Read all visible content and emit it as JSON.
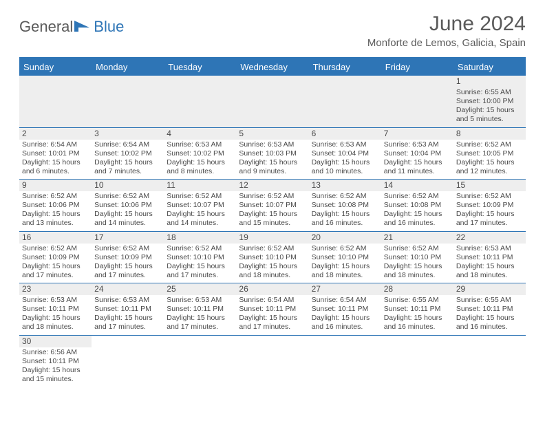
{
  "logo": {
    "text1": "General",
    "text2": "Blue"
  },
  "title": "June 2024",
  "location": "Monforte de Lemos, Galicia, Spain",
  "dayNames": [
    "Sunday",
    "Monday",
    "Tuesday",
    "Wednesday",
    "Thursday",
    "Friday",
    "Saturday"
  ],
  "colors": {
    "brand_blue": "#2e75b6",
    "text_gray": "#5a5a5a",
    "row_alt": "#eeeeee"
  },
  "weeks": [
    [
      null,
      null,
      null,
      null,
      null,
      null,
      {
        "n": "1",
        "sunrise": "6:55 AM",
        "sunset": "10:00 PM",
        "daylight": "15 hours and 5 minutes."
      }
    ],
    [
      {
        "n": "2",
        "sunrise": "6:54 AM",
        "sunset": "10:01 PM",
        "daylight": "15 hours and 6 minutes."
      },
      {
        "n": "3",
        "sunrise": "6:54 AM",
        "sunset": "10:02 PM",
        "daylight": "15 hours and 7 minutes."
      },
      {
        "n": "4",
        "sunrise": "6:53 AM",
        "sunset": "10:02 PM",
        "daylight": "15 hours and 8 minutes."
      },
      {
        "n": "5",
        "sunrise": "6:53 AM",
        "sunset": "10:03 PM",
        "daylight": "15 hours and 9 minutes."
      },
      {
        "n": "6",
        "sunrise": "6:53 AM",
        "sunset": "10:04 PM",
        "daylight": "15 hours and 10 minutes."
      },
      {
        "n": "7",
        "sunrise": "6:53 AM",
        "sunset": "10:04 PM",
        "daylight": "15 hours and 11 minutes."
      },
      {
        "n": "8",
        "sunrise": "6:52 AM",
        "sunset": "10:05 PM",
        "daylight": "15 hours and 12 minutes."
      }
    ],
    [
      {
        "n": "9",
        "sunrise": "6:52 AM",
        "sunset": "10:06 PM",
        "daylight": "15 hours and 13 minutes."
      },
      {
        "n": "10",
        "sunrise": "6:52 AM",
        "sunset": "10:06 PM",
        "daylight": "15 hours and 14 minutes."
      },
      {
        "n": "11",
        "sunrise": "6:52 AM",
        "sunset": "10:07 PM",
        "daylight": "15 hours and 14 minutes."
      },
      {
        "n": "12",
        "sunrise": "6:52 AM",
        "sunset": "10:07 PM",
        "daylight": "15 hours and 15 minutes."
      },
      {
        "n": "13",
        "sunrise": "6:52 AM",
        "sunset": "10:08 PM",
        "daylight": "15 hours and 16 minutes."
      },
      {
        "n": "14",
        "sunrise": "6:52 AM",
        "sunset": "10:08 PM",
        "daylight": "15 hours and 16 minutes."
      },
      {
        "n": "15",
        "sunrise": "6:52 AM",
        "sunset": "10:09 PM",
        "daylight": "15 hours and 17 minutes."
      }
    ],
    [
      {
        "n": "16",
        "sunrise": "6:52 AM",
        "sunset": "10:09 PM",
        "daylight": "15 hours and 17 minutes."
      },
      {
        "n": "17",
        "sunrise": "6:52 AM",
        "sunset": "10:09 PM",
        "daylight": "15 hours and 17 minutes."
      },
      {
        "n": "18",
        "sunrise": "6:52 AM",
        "sunset": "10:10 PM",
        "daylight": "15 hours and 17 minutes."
      },
      {
        "n": "19",
        "sunrise": "6:52 AM",
        "sunset": "10:10 PM",
        "daylight": "15 hours and 18 minutes."
      },
      {
        "n": "20",
        "sunrise": "6:52 AM",
        "sunset": "10:10 PM",
        "daylight": "15 hours and 18 minutes."
      },
      {
        "n": "21",
        "sunrise": "6:52 AM",
        "sunset": "10:10 PM",
        "daylight": "15 hours and 18 minutes."
      },
      {
        "n": "22",
        "sunrise": "6:53 AM",
        "sunset": "10:11 PM",
        "daylight": "15 hours and 18 minutes."
      }
    ],
    [
      {
        "n": "23",
        "sunrise": "6:53 AM",
        "sunset": "10:11 PM",
        "daylight": "15 hours and 18 minutes."
      },
      {
        "n": "24",
        "sunrise": "6:53 AM",
        "sunset": "10:11 PM",
        "daylight": "15 hours and 17 minutes."
      },
      {
        "n": "25",
        "sunrise": "6:53 AM",
        "sunset": "10:11 PM",
        "daylight": "15 hours and 17 minutes."
      },
      {
        "n": "26",
        "sunrise": "6:54 AM",
        "sunset": "10:11 PM",
        "daylight": "15 hours and 17 minutes."
      },
      {
        "n": "27",
        "sunrise": "6:54 AM",
        "sunset": "10:11 PM",
        "daylight": "15 hours and 16 minutes."
      },
      {
        "n": "28",
        "sunrise": "6:55 AM",
        "sunset": "10:11 PM",
        "daylight": "15 hours and 16 minutes."
      },
      {
        "n": "29",
        "sunrise": "6:55 AM",
        "sunset": "10:11 PM",
        "daylight": "15 hours and 16 minutes."
      }
    ],
    [
      {
        "n": "30",
        "sunrise": "6:56 AM",
        "sunset": "10:11 PM",
        "daylight": "15 hours and 15 minutes."
      },
      null,
      null,
      null,
      null,
      null,
      null
    ]
  ],
  "labels": {
    "sunrise": "Sunrise:",
    "sunset": "Sunset:",
    "daylight": "Daylight:"
  }
}
